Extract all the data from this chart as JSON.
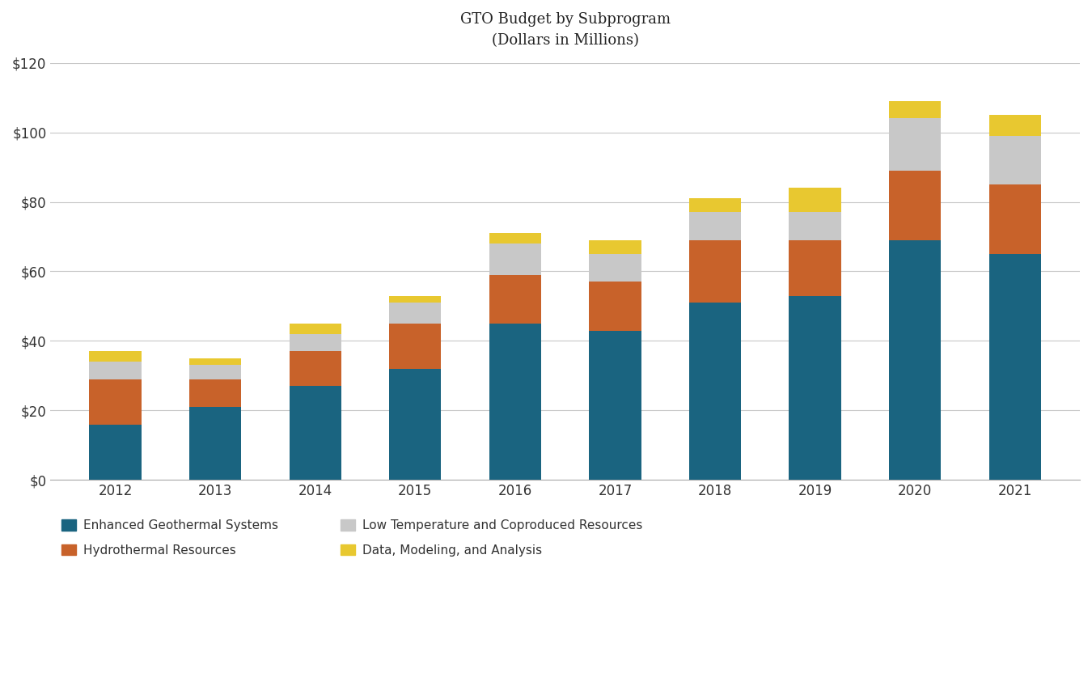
{
  "years": [
    2012,
    2013,
    2014,
    2015,
    2016,
    2017,
    2018,
    2019,
    2020,
    2021
  ],
  "egs": [
    16.0,
    21.0,
    27.0,
    32.0,
    45.0,
    43.0,
    51.0,
    53.0,
    69.0,
    65.0
  ],
  "hydrothermal": [
    13.0,
    8.0,
    10.0,
    13.0,
    14.0,
    14.0,
    18.0,
    16.0,
    20.0,
    20.0
  ],
  "low_temp": [
    5.0,
    4.0,
    5.0,
    6.0,
    9.0,
    8.0,
    8.0,
    8.0,
    15.0,
    14.0
  ],
  "dma": [
    3.0,
    2.0,
    3.0,
    2.0,
    3.0,
    4.0,
    4.0,
    7.0,
    5.0,
    6.0
  ],
  "colors": {
    "egs": "#1a6480",
    "hydrothermal": "#c8622a",
    "low_temp": "#c8c8c8",
    "dma": "#e8c830"
  },
  "labels": {
    "egs": "Enhanced Geothermal Systems",
    "hydrothermal": "Hydrothermal Resources",
    "low_temp": "Low Temperature and Coproduced Resources",
    "dma": "Data, Modeling, and Analysis"
  },
  "title_line1": "GTO Budget by Subprogram",
  "title_line2": "(Dollars in Millions)",
  "ylim": [
    0,
    120
  ],
  "yticks": [
    0,
    20,
    40,
    60,
    80,
    100,
    120
  ],
  "background_color": "#ffffff",
  "grid_color": "#c8c8c8"
}
